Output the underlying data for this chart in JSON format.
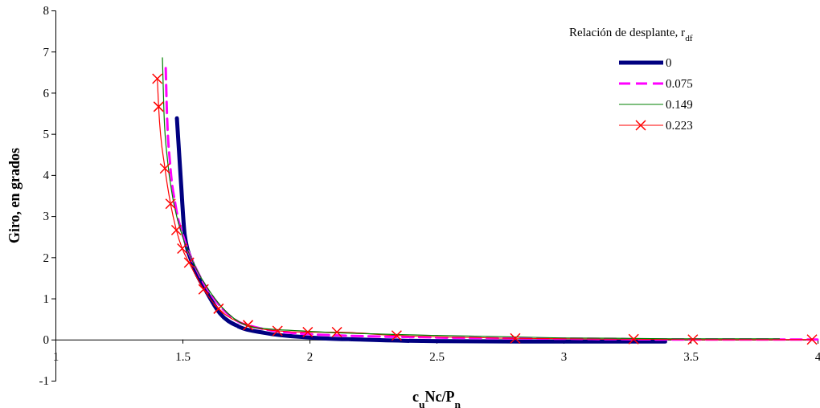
{
  "chart_data": {
    "type": "line",
    "xlabel": "c$_{u}$Nc/P$_{n}$",
    "ylabel": "Giro, en grados",
    "legend_title": "Relación de desplante, r$_{df}$",
    "legend": "top right",
    "grid": false,
    "xlim": [
      1,
      4
    ],
    "xticks": [
      1,
      1.5,
      2,
      2.5,
      3,
      3.5,
      4
    ],
    "ylim": [
      -1,
      8
    ],
    "yticks": [
      -1,
      0,
      1,
      2,
      3,
      4,
      5,
      6,
      7,
      8
    ],
    "series": [
      {
        "name": "0",
        "color": "#000080",
        "line_style": "solid",
        "marker": "none",
        "x": [
          1.478,
          1.494,
          1.509,
          1.541,
          1.594,
          1.647,
          1.72,
          1.826,
          2.0,
          2.2,
          2.5,
          3.0,
          3.4
        ],
        "values": [
          5.38,
          3.83,
          2.53,
          1.82,
          1.17,
          0.64,
          0.32,
          0.16,
          0.05,
          0.0,
          -0.04,
          -0.05,
          -0.05
        ]
      },
      {
        "name": "0.075",
        "color": "#ff00ff",
        "line_style": "dashed",
        "marker": "none",
        "x": [
          1.434,
          1.438,
          1.452,
          1.473,
          1.509,
          1.562,
          1.636,
          1.741,
          2.0,
          2.5,
          3.0,
          3.5,
          4.0
        ],
        "values": [
          6.6,
          5.66,
          4.22,
          3.25,
          2.4,
          1.62,
          0.9,
          0.38,
          0.13,
          0.05,
          0.02,
          0.0,
          0.0
        ]
      },
      {
        "name": "0.149",
        "color": "#008000",
        "line_style": "solid",
        "marker": "none",
        "x": [
          1.421,
          1.427,
          1.441,
          1.462,
          1.499,
          1.552,
          1.615,
          1.678,
          1.784,
          2.0,
          2.5,
          3.0,
          3.5,
          3.85
        ],
        "values": [
          6.85,
          5.53,
          4.36,
          3.44,
          2.53,
          1.75,
          1.1,
          0.64,
          0.29,
          0.2,
          0.1,
          0.04,
          0.02,
          0.02
        ]
      },
      {
        "name": "0.223",
        "color": "#ff0000",
        "line_style": "solid",
        "marker": "cross",
        "x": [
          1.401,
          1.406,
          1.431,
          1.453,
          1.476,
          1.499,
          1.526,
          1.583,
          1.642,
          1.758,
          1.874,
          1.993,
          2.108,
          2.343,
          2.81,
          3.276,
          3.509,
          3.978
        ],
        "values": [
          6.34,
          5.66,
          4.16,
          3.3,
          2.66,
          2.21,
          1.87,
          1.22,
          0.75,
          0.35,
          0.21,
          0.18,
          0.18,
          0.1,
          0.03,
          0.01,
          0.0,
          0.0
        ]
      }
    ]
  }
}
